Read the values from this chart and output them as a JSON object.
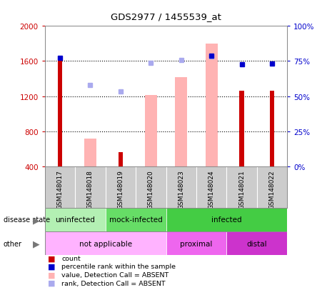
{
  "title": "GDS2977 / 1455539_at",
  "samples": [
    "GSM148017",
    "GSM148018",
    "GSM148019",
    "GSM148020",
    "GSM148023",
    "GSM148024",
    "GSM148021",
    "GSM148022"
  ],
  "count_values": [
    1640,
    null,
    560,
    null,
    null,
    null,
    1260,
    1260
  ],
  "absent_value_bars": [
    null,
    720,
    null,
    1210,
    1420,
    1800,
    null,
    null
  ],
  "percentile_rank_dots_left": [
    1640,
    null,
    null,
    null,
    null,
    1660,
    1565,
    1570
  ],
  "absent_rank_dots_left": [
    null,
    1330,
    1255,
    1575,
    1610,
    1650,
    null,
    null
  ],
  "ylim_left": [
    400,
    2000
  ],
  "ylim_right": [
    0,
    100
  ],
  "yticks_left": [
    400,
    800,
    1200,
    1600,
    2000
  ],
  "yticks_right": [
    0,
    25,
    50,
    75,
    100
  ],
  "disease_state_groups": [
    {
      "label": "uninfected",
      "start": 0,
      "end": 2,
      "color": "#b3f0b3"
    },
    {
      "label": "mock-infected",
      "start": 2,
      "end": 4,
      "color": "#66dd66"
    },
    {
      "label": "infected",
      "start": 4,
      "end": 8,
      "color": "#44cc44"
    }
  ],
  "other_groups": [
    {
      "label": "not applicable",
      "start": 0,
      "end": 4,
      "color": "#ffb3ff"
    },
    {
      "label": "proximal",
      "start": 4,
      "end": 6,
      "color": "#ee66ee"
    },
    {
      "label": "distal",
      "start": 6,
      "end": 8,
      "color": "#cc33cc"
    }
  ],
  "bar_color_red": "#cc0000",
  "bar_color_pink": "#ffb3b3",
  "dot_color_blue": "#0000cc",
  "dot_color_lightblue": "#aaaaee",
  "axis_color_left": "#cc0000",
  "axis_color_right": "#0000cc",
  "bg_plot": "#ffffff",
  "bg_tick": "#cccccc",
  "border_color": "#aaaaaa"
}
